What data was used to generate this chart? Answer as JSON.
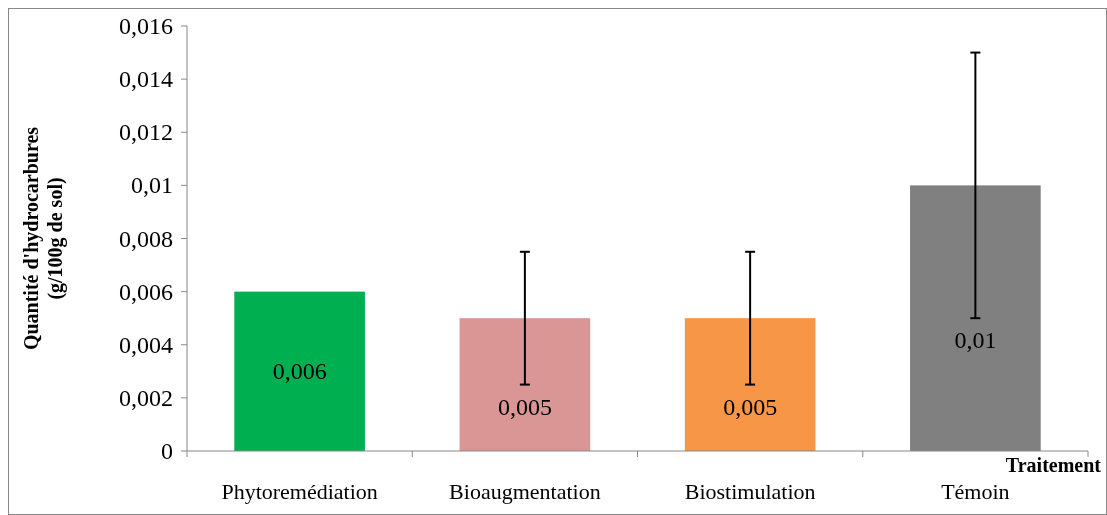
{
  "chart_data": {
    "type": "bar",
    "xlabel": "Traitement",
    "ylabel": "Quantité d'hydrocarbures (g/100g de sol)",
    "categories": [
      "Phytoremédiation",
      "Bioaugmentation",
      "Biostimulation",
      "Témoin"
    ],
    "values": [
      0.006,
      0.005,
      0.005,
      0.01
    ],
    "colors": [
      "#00b050",
      "#d99694",
      "#f79646",
      "#808080"
    ],
    "errors": [
      null,
      0.0025,
      0.0025,
      0.005
    ],
    "value_labels": [
      "0,006",
      "0,005",
      "0,005",
      "0,01"
    ],
    "ylim": [
      0,
      0.016
    ],
    "yticks": [
      {
        "value": 0,
        "label": "0"
      },
      {
        "value": 0.002,
        "label": "0,002"
      },
      {
        "value": 0.004,
        "label": "0,004"
      },
      {
        "value": 0.006,
        "label": "0,006"
      },
      {
        "value": 0.008,
        "label": "0,008"
      },
      {
        "value": 0.01,
        "label": "0,01"
      },
      {
        "value": 0.012,
        "label": "0,012"
      },
      {
        "value": 0.014,
        "label": "0,014"
      },
      {
        "value": 0.016,
        "label": "0,016"
      }
    ],
    "grid": false
  }
}
